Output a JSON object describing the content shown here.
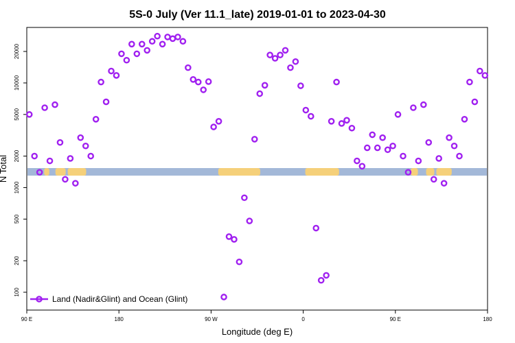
{
  "chart_data": {
    "type": "scatter",
    "title": "5S-0 July (Ver 11.1_late)   2019-01-01 to 2023-04-30",
    "xlabel": "Longitude (deg E)",
    "ylabel": "N Total",
    "x_scale": "linear",
    "y_scale": "log",
    "xlim": [
      90,
      540
    ],
    "ylim": [
      85,
      40000
    ],
    "x_ticks": [
      {
        "value": 90,
        "label": "90 E"
      },
      {
        "value": 180,
        "label": "180"
      },
      {
        "value": 270,
        "label": "90 W"
      },
      {
        "value": 360,
        "label": "0"
      },
      {
        "value": 450,
        "label": "90 E"
      },
      {
        "value": 540,
        "label": "180"
      }
    ],
    "y_ticks": [
      {
        "value": 100,
        "label": "100"
      },
      {
        "value": 200,
        "label": "200"
      },
      {
        "value": 500,
        "label": "500"
      },
      {
        "value": 1000,
        "label": "1000"
      },
      {
        "value": 2000,
        "label": "2000"
      },
      {
        "value": 5000,
        "label": "5000"
      },
      {
        "value": 10000,
        "label": "10000"
      },
      {
        "value": 20000,
        "label": "20000"
      }
    ],
    "series": [
      {
        "name": "Land (Nadir&Glint) and Ocean (Glint)",
        "color": "#a020f0",
        "marker": "open-circle",
        "points": [
          [
            92.5,
            5000
          ],
          [
            97.5,
            2000
          ],
          [
            102.5,
            1400
          ],
          [
            107.5,
            5800
          ],
          [
            112.5,
            1800
          ],
          [
            117.5,
            6200
          ],
          [
            122.5,
            2700
          ],
          [
            127.5,
            1200
          ],
          [
            132.5,
            1900
          ],
          [
            137.5,
            1100
          ],
          [
            142.5,
            3000
          ],
          [
            147.5,
            2500
          ],
          [
            152.5,
            2000
          ],
          [
            157.5,
            4500
          ],
          [
            162.5,
            10200
          ],
          [
            167.5,
            6600
          ],
          [
            172.5,
            13000
          ],
          [
            177.5,
            11800
          ],
          [
            182.5,
            19000
          ],
          [
            187.5,
            16500
          ],
          [
            192.5,
            23500
          ],
          [
            197.5,
            19000
          ],
          [
            202.5,
            23500
          ],
          [
            207.5,
            20500
          ],
          [
            212.5,
            25000
          ],
          [
            217.5,
            28000
          ],
          [
            222.5,
            23500
          ],
          [
            227.5,
            27500
          ],
          [
            232.5,
            26500
          ],
          [
            237.5,
            27500
          ],
          [
            242.5,
            25000
          ],
          [
            247.5,
            14000
          ],
          [
            252.5,
            10800
          ],
          [
            257.5,
            10200
          ],
          [
            262.5,
            8600
          ],
          [
            267.5,
            10300
          ],
          [
            272.5,
            3800
          ],
          [
            277.5,
            4300
          ],
          [
            282.5,
            90
          ],
          [
            287.5,
            340
          ],
          [
            292.5,
            320
          ],
          [
            297.5,
            195
          ],
          [
            302.5,
            800
          ],
          [
            307.5,
            480
          ],
          [
            312.5,
            2900
          ],
          [
            317.5,
            7900
          ],
          [
            322.5,
            9500
          ],
          [
            327.5,
            18500
          ],
          [
            332.5,
            17200
          ],
          [
            337.5,
            18500
          ],
          [
            342.5,
            20500
          ],
          [
            347.5,
            14000
          ],
          [
            352.5,
            16000
          ],
          [
            357.5,
            9400
          ],
          [
            362.5,
            5500
          ],
          [
            367.5,
            4800
          ],
          [
            372.5,
            410
          ],
          [
            377.5,
            130
          ],
          [
            382.5,
            145
          ],
          [
            387.5,
            4300
          ],
          [
            392.5,
            10200
          ],
          [
            397.5,
            4100
          ],
          [
            402.5,
            4400
          ],
          [
            407.5,
            3700
          ],
          [
            412.5,
            1800
          ],
          [
            417.5,
            1600
          ],
          [
            422.5,
            2400
          ],
          [
            427.5,
            3200
          ],
          [
            432.5,
            2400
          ],
          [
            437.5,
            3000
          ],
          [
            442.5,
            2300
          ],
          [
            447.5,
            2500
          ],
          [
            452.5,
            5000
          ],
          [
            457.5,
            2000
          ],
          [
            462.5,
            1400
          ],
          [
            467.5,
            5800
          ],
          [
            472.5,
            1800
          ],
          [
            477.5,
            6200
          ],
          [
            482.5,
            2700
          ],
          [
            487.5,
            1200
          ],
          [
            492.5,
            1900
          ],
          [
            497.5,
            1100
          ],
          [
            502.5,
            3000
          ],
          [
            507.5,
            2500
          ],
          [
            512.5,
            2000
          ],
          [
            517.5,
            4500
          ],
          [
            522.5,
            10200
          ],
          [
            527.5,
            6600
          ],
          [
            532.5,
            13000
          ],
          [
            537.5,
            11800
          ]
        ]
      }
    ],
    "legend": {
      "position": "bottom-left",
      "entries": [
        "Land (Nadir&Glint) and Ocean (Glint)"
      ]
    },
    "surface_strip": {
      "description_colors": {
        "ocean": "#a3b8d8",
        "land": "#f5d07a"
      },
      "land_segments_lon": [
        [
          107,
          112
        ],
        [
          118,
          128
        ],
        [
          130,
          148
        ],
        [
          277,
          318
        ],
        [
          362,
          395
        ],
        [
          465,
          472
        ],
        [
          480,
          488
        ],
        [
          490,
          505
        ]
      ]
    },
    "grid": false
  }
}
